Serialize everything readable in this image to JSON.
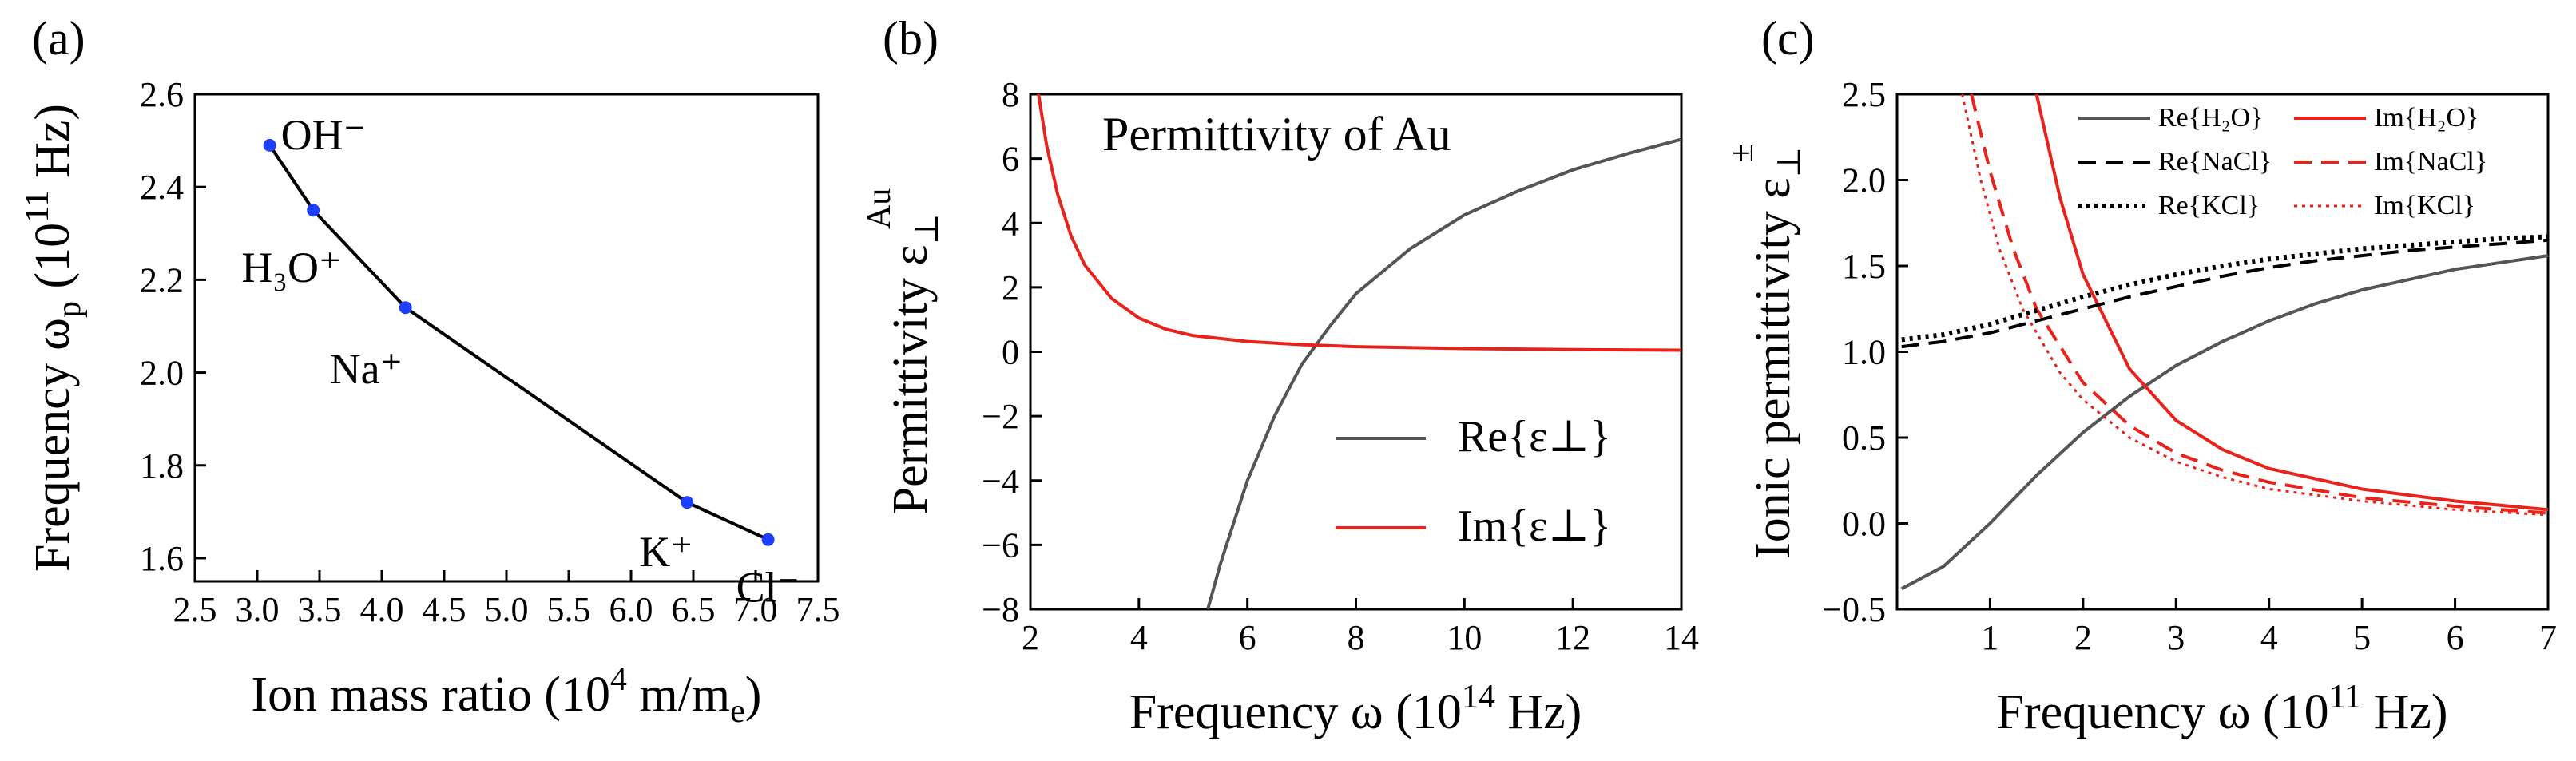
{
  "chart_data": [
    {
      "type": "line",
      "panel_label": "(a)",
      "xlabel": "Ion mass ratio (10⁴ m/mₑ)",
      "ylabel": "Frequency ωₚ (10¹¹ Hz)",
      "xlim": [
        2.5,
        7.5
      ],
      "ylim": [
        1.55,
        2.6
      ],
      "x_ticks": [
        "2.5",
        "3.0",
        "3.5",
        "4.0",
        "4.5",
        "5.0",
        "5.5",
        "6.0",
        "6.5",
        "7.0",
        "7.5"
      ],
      "y_ticks": [
        "1.6",
        "1.8",
        "2.0",
        "2.2",
        "2.4",
        "2.6"
      ],
      "points": [
        {
          "name": "OH⁻",
          "x": 3.1,
          "y": 2.49
        },
        {
          "name": "H₃O⁺",
          "x": 3.45,
          "y": 2.35
        },
        {
          "name": "Na⁺",
          "x": 4.19,
          "y": 2.14
        },
        {
          "name": "K⁺",
          "x": 6.45,
          "y": 1.72
        },
        {
          "name": "Cl⁻",
          "x": 7.1,
          "y": 1.64
        }
      ],
      "colors": {
        "curve": "#000000",
        "points": "#1f3fff"
      }
    },
    {
      "type": "line",
      "panel_label": "(b)",
      "title": "Permittivity of Au",
      "xlabel": "Frequency ω (10¹⁴ Hz)",
      "ylabel": "Permittivity ε⊥",
      "ylabel_sup": "Au",
      "xlim": [
        2,
        14
      ],
      "ylim": [
        -8,
        8
      ],
      "x_ticks": [
        "2",
        "4",
        "6",
        "8",
        "10",
        "12",
        "14"
      ],
      "y_ticks": [
        "8",
        "6",
        "4",
        "2",
        "0",
        "−2",
        "−4",
        "−6",
        "−8"
      ],
      "series": [
        {
          "name": "Re{ε⊥}",
          "color": "#555555",
          "points": [
            [
              5.27,
              -8.0
            ],
            [
              5.5,
              -6.6
            ],
            [
              6.0,
              -4.0
            ],
            [
              6.5,
              -2.0
            ],
            [
              7.0,
              -0.4
            ],
            [
              7.5,
              0.75
            ],
            [
              8.0,
              1.8
            ],
            [
              9.0,
              3.2
            ],
            [
              10.0,
              4.25
            ],
            [
              11.0,
              5.0
            ],
            [
              12.0,
              5.65
            ],
            [
              13.0,
              6.15
            ],
            [
              14.0,
              6.6
            ]
          ]
        },
        {
          "name": "Im{ε⊥}",
          "color": "#e8231c",
          "points": [
            [
              2.15,
              8.0
            ],
            [
              2.3,
              6.4
            ],
            [
              2.5,
              4.9
            ],
            [
              2.75,
              3.6
            ],
            [
              3.0,
              2.7
            ],
            [
              3.5,
              1.65
            ],
            [
              4.0,
              1.05
            ],
            [
              4.5,
              0.7
            ],
            [
              5.0,
              0.5
            ],
            [
              6.0,
              0.32
            ],
            [
              7.0,
              0.22
            ],
            [
              8.0,
              0.16
            ],
            [
              10.0,
              0.1
            ],
            [
              12.0,
              0.07
            ],
            [
              14.0,
              0.05
            ]
          ]
        }
      ]
    },
    {
      "type": "line",
      "panel_label": "(c)",
      "xlabel": "Frequency ω (10¹¹ Hz)",
      "ylabel": "Ionic permittivity ε⊥",
      "ylabel_sup": "±",
      "xlim": [
        0,
        7
      ],
      "ylim": [
        -0.5,
        2.5
      ],
      "x_ticks": [
        "1",
        "2",
        "3",
        "4",
        "5",
        "6",
        "7"
      ],
      "y_ticks": [
        "2.5",
        "2.0",
        "1.5",
        "1.0",
        "0.5",
        "0.0",
        "−0.5"
      ],
      "series": [
        {
          "name": "Re{H₂O}",
          "color": "#555555",
          "dash": "solid",
          "points": [
            [
              0.05,
              -0.38
            ],
            [
              0.5,
              -0.25
            ],
            [
              1.0,
              0.0
            ],
            [
              1.5,
              0.28
            ],
            [
              2.0,
              0.53
            ],
            [
              2.5,
              0.74
            ],
            [
              3.0,
              0.92
            ],
            [
              3.5,
              1.06
            ],
            [
              4.0,
              1.18
            ],
            [
              4.5,
              1.28
            ],
            [
              5.0,
              1.36
            ],
            [
              5.5,
              1.42
            ],
            [
              6.0,
              1.48
            ],
            [
              6.5,
              1.52
            ],
            [
              7.0,
              1.56
            ]
          ]
        },
        {
          "name": "Im{H₂O}",
          "color": "#e8231c",
          "dash": "solid",
          "points": [
            [
              1.5,
              2.5
            ],
            [
              1.75,
              1.9
            ],
            [
              2.0,
              1.45
            ],
            [
              2.5,
              0.9
            ],
            [
              3.0,
              0.6
            ],
            [
              3.5,
              0.43
            ],
            [
              4.0,
              0.32
            ],
            [
              5.0,
              0.2
            ],
            [
              6.0,
              0.13
            ],
            [
              7.0,
              0.08
            ]
          ]
        },
        {
          "name": "Re{NaCl}",
          "color": "#000000",
          "dash": "dashed",
          "points": [
            [
              0.05,
              1.03
            ],
            [
              0.5,
              1.06
            ],
            [
              1.0,
              1.11
            ],
            [
              1.5,
              1.18
            ],
            [
              2.0,
              1.25
            ],
            [
              2.5,
              1.32
            ],
            [
              3.0,
              1.38
            ],
            [
              3.5,
              1.44
            ],
            [
              4.0,
              1.49
            ],
            [
              4.5,
              1.53
            ],
            [
              5.0,
              1.56
            ],
            [
              5.5,
              1.59
            ],
            [
              6.0,
              1.61
            ],
            [
              6.5,
              1.63
            ],
            [
              7.0,
              1.65
            ]
          ]
        },
        {
          "name": "Im{NaCl}",
          "color": "#e8231c",
          "dash": "dashed",
          "points": [
            [
              0.8,
              2.5
            ],
            [
              1.0,
              2.05
            ],
            [
              1.25,
              1.6
            ],
            [
              1.5,
              1.25
            ],
            [
              2.0,
              0.82
            ],
            [
              2.5,
              0.57
            ],
            [
              3.0,
              0.41
            ],
            [
              3.5,
              0.31
            ],
            [
              4.0,
              0.24
            ],
            [
              5.0,
              0.15
            ],
            [
              6.0,
              0.1
            ],
            [
              7.0,
              0.06
            ]
          ]
        },
        {
          "name": "Re{KCl}",
          "color": "#000000",
          "dash": "dotted",
          "points": [
            [
              0.05,
              1.07
            ],
            [
              0.5,
              1.1
            ],
            [
              1.0,
              1.16
            ],
            [
              1.5,
              1.24
            ],
            [
              2.0,
              1.32
            ],
            [
              2.5,
              1.39
            ],
            [
              3.0,
              1.45
            ],
            [
              3.5,
              1.5
            ],
            [
              4.0,
              1.54
            ],
            [
              4.5,
              1.57
            ],
            [
              5.0,
              1.6
            ],
            [
              5.5,
              1.62
            ],
            [
              6.0,
              1.64
            ],
            [
              6.5,
              1.66
            ],
            [
              7.0,
              1.67
            ]
          ]
        },
        {
          "name": "Im{KCl}",
          "color": "#e8231c",
          "dash": "dotted",
          "points": [
            [
              0.7,
              2.5
            ],
            [
              0.9,
              2.0
            ],
            [
              1.1,
              1.6
            ],
            [
              1.35,
              1.25
            ],
            [
              1.75,
              0.88
            ],
            [
              2.0,
              0.72
            ],
            [
              2.5,
              0.5
            ],
            [
              3.0,
              0.36
            ],
            [
              3.5,
              0.27
            ],
            [
              4.0,
              0.2
            ],
            [
              5.0,
              0.13
            ],
            [
              6.0,
              0.08
            ],
            [
              7.0,
              0.05
            ]
          ]
        }
      ]
    }
  ]
}
